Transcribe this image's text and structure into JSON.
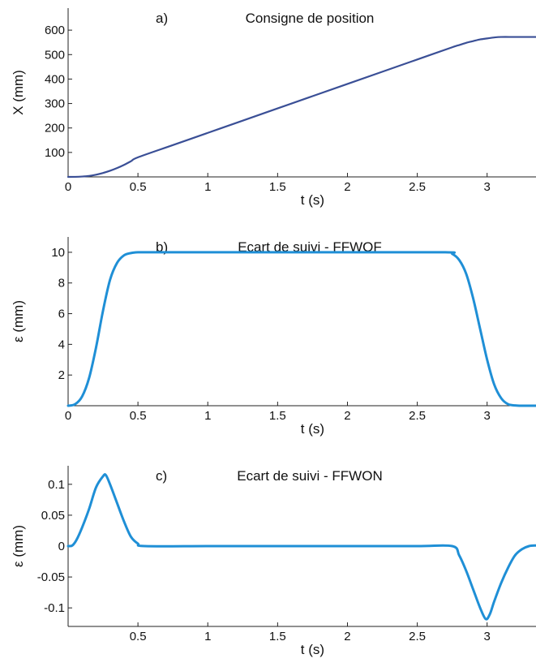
{
  "chart_data": [
    {
      "type": "line",
      "panel_label": "a)",
      "title": "Consigne de position",
      "xlabel": "t (s)",
      "ylabel": "X (mm)",
      "xlim": [
        0,
        3.35
      ],
      "ylim": [
        0,
        690
      ],
      "xticks": [
        0,
        0.5,
        1,
        1.5,
        2,
        2.5,
        3
      ],
      "xtick_labels": [
        "0",
        "0.5",
        "1",
        "1.5",
        "2",
        "2.5",
        "3"
      ],
      "yticks": [
        100,
        200,
        300,
        400,
        500,
        600
      ],
      "ytick_labels": [
        "100",
        "200",
        "300",
        "400",
        "500",
        "600"
      ],
      "series": [
        {
          "color": "#3a4f96",
          "x": [
            0,
            0.05,
            0.1,
            0.15,
            0.2,
            0.25,
            0.3,
            0.35,
            0.4,
            0.45,
            0.5,
            0.75,
            1.0,
            1.25,
            1.5,
            1.75,
            2.0,
            2.25,
            2.5,
            2.75,
            2.8,
            2.85,
            2.9,
            2.95,
            3.0,
            3.05,
            3.1,
            3.2,
            3.35
          ],
          "y": [
            0,
            0.2,
            1.5,
            4,
            9,
            16,
            25,
            36,
            49,
            64,
            80,
            130,
            180,
            230,
            280,
            330,
            380,
            430,
            480,
            530,
            539,
            548,
            555,
            562,
            566,
            570,
            572,
            572,
            572
          ]
        }
      ]
    },
    {
      "type": "line",
      "panel_label": "b)",
      "title": "Ecart de suivi - FFWOF",
      "xlabel": "t (s)",
      "ylabel": "ε (mm)",
      "xlim": [
        0,
        3.35
      ],
      "ylim": [
        0,
        11
      ],
      "xticks": [
        0,
        0.5,
        1,
        1.5,
        2,
        2.5,
        3
      ],
      "xtick_labels": [
        "0",
        "0.5",
        "1",
        "1.5",
        "2",
        "2.5",
        "3"
      ],
      "yticks": [
        2,
        4,
        6,
        8,
        10
      ],
      "ytick_labels": [
        "2",
        "4",
        "6",
        "8",
        "10"
      ],
      "series": [
        {
          "color": "#1f8fd6",
          "x": [
            0,
            0.05,
            0.1,
            0.15,
            0.2,
            0.25,
            0.3,
            0.35,
            0.4,
            0.45,
            0.5,
            0.6,
            1.0,
            2.0,
            2.7,
            2.75,
            2.8,
            2.85,
            2.9,
            2.95,
            3.0,
            3.05,
            3.1,
            3.15,
            3.2,
            3.25,
            3.35
          ],
          "y": [
            0,
            0.1,
            0.6,
            1.8,
            3.8,
            6.2,
            8.2,
            9.3,
            9.8,
            9.95,
            10,
            10,
            10,
            10,
            10,
            9.9,
            9.5,
            8.6,
            7.0,
            5.0,
            3.0,
            1.4,
            0.5,
            0.1,
            0.02,
            0,
            0
          ]
        }
      ]
    },
    {
      "type": "line",
      "panel_label": "c)",
      "title": "Ecart de suivi - FFWON",
      "xlabel": "t (s)",
      "ylabel": "ε (mm)",
      "xlim": [
        0,
        3.35
      ],
      "ylim": [
        -0.13,
        0.13
      ],
      "xticks": [
        0.5,
        1,
        1.5,
        2,
        2.5,
        3
      ],
      "xtick_labels": [
        "0.5",
        "1",
        "1.5",
        "2",
        "2.5",
        "3"
      ],
      "yticks": [
        -0.1,
        -0.05,
        0,
        0.05,
        0.1
      ],
      "ytick_labels": [
        "-0.1",
        "-0.05",
        "0",
        "0.05",
        "0.1"
      ],
      "series": [
        {
          "color": "#1f8fd6",
          "x": [
            0,
            0.03,
            0.06,
            0.1,
            0.15,
            0.2,
            0.25,
            0.27,
            0.3,
            0.35,
            0.4,
            0.45,
            0.5,
            0.55,
            1.0,
            1.5,
            2.0,
            2.5,
            2.75,
            2.8,
            2.85,
            2.9,
            2.95,
            2.99,
            3.02,
            3.05,
            3.1,
            3.15,
            3.2,
            3.25,
            3.3,
            3.35
          ],
          "y": [
            0,
            0.001,
            0.01,
            0.03,
            0.06,
            0.095,
            0.113,
            0.115,
            0.1,
            0.07,
            0.04,
            0.015,
            0.004,
            0.0,
            0.0,
            0.0,
            0.0,
            0.0,
            0.0,
            -0.015,
            -0.04,
            -0.07,
            -0.1,
            -0.118,
            -0.11,
            -0.09,
            -0.06,
            -0.035,
            -0.015,
            -0.005,
            0.0,
            0.001
          ]
        }
      ]
    }
  ]
}
